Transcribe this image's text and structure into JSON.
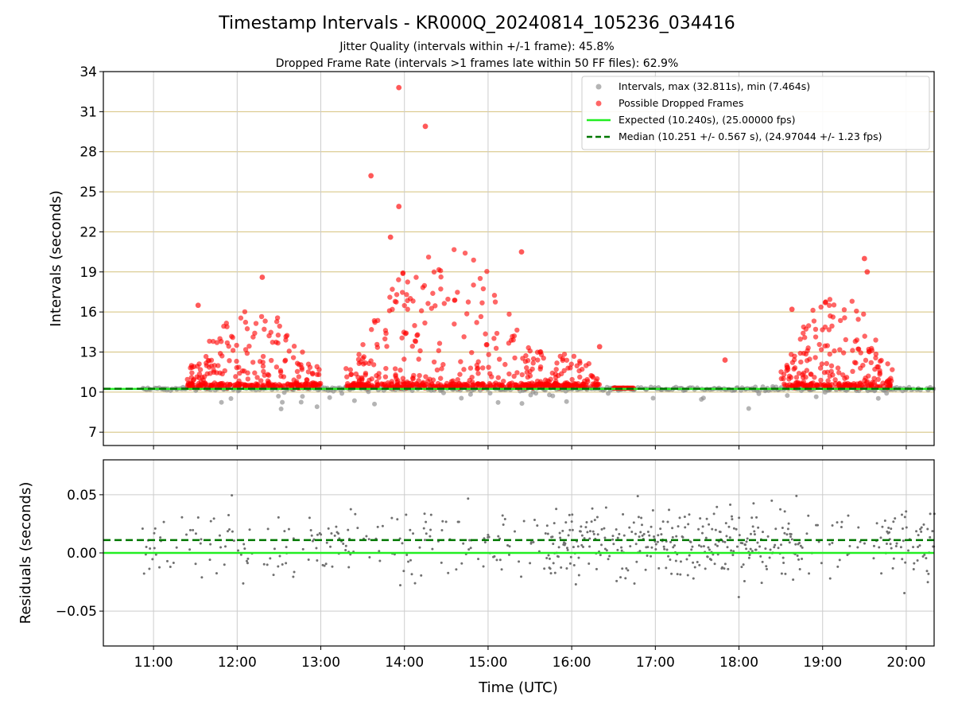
{
  "title": "Timestamp Intervals - KR000Q_20240814_105236_034416",
  "subtitle1": "Jitter Quality (intervals within +/-1 frame): 45.8%",
  "subtitle2": "Dropped Frame Rate (intervals >1 frames late within 50 FF files): 62.9%",
  "colors": {
    "intervals": "#8c8c8c",
    "dropped": "#ff0000",
    "expected": "#22ee22",
    "median": "#007700",
    "grid_top": "#d4c07a",
    "grid": "#cccccc",
    "residuals": "#707070"
  },
  "chart_data": [
    {
      "type": "scatter",
      "name": "intervals",
      "ylabel": "Intervals (seconds)",
      "ylim": [
        6,
        34
      ],
      "xlim": [
        "10:24",
        "20:20"
      ],
      "yticks": [
        7,
        10,
        13,
        16,
        19,
        22,
        25,
        28,
        31,
        34
      ],
      "grid": "horizontal (gold) and vertical",
      "legend_position": "top-right",
      "legend": [
        {
          "label": "Intervals, max (32.811s), min (7.464s)",
          "kind": "dot-gray"
        },
        {
          "label": "Possible Dropped Frames",
          "kind": "dot-red"
        },
        {
          "label": "Expected (10.240s), (25.00000 fps)",
          "kind": "line-green"
        },
        {
          "label": "Median (10.251 +/- 0.567 s), (24.97044 +/- 1.23 fps)",
          "kind": "dashed-green"
        }
      ],
      "expected": 10.24,
      "median": 10.251,
      "max": 32.811,
      "min": 7.464,
      "dropped_highlights": [
        {
          "x": "13:56",
          "y": 32.8
        },
        {
          "x": "14:15",
          "y": 29.9
        },
        {
          "x": "13:36",
          "y": 26.2
        },
        {
          "x": "13:56",
          "y": 23.9
        },
        {
          "x": "13:50",
          "y": 21.6
        },
        {
          "x": "15:24",
          "y": 20.5
        },
        {
          "x": "19:30",
          "y": 20.0
        },
        {
          "x": "12:18",
          "y": 18.6
        },
        {
          "x": "19:32",
          "y": 19.0
        },
        {
          "x": "11:32",
          "y": 16.5
        },
        {
          "x": "18:38",
          "y": 16.2
        },
        {
          "x": "19:02",
          "y": 16.7
        },
        {
          "x": "16:20",
          "y": 13.4
        },
        {
          "x": "17:50",
          "y": 12.4
        }
      ],
      "clusters": [
        {
          "from": "11:24",
          "to": "13:00",
          "spread": [
            10.5,
            16.5
          ]
        },
        {
          "from": "13:18",
          "to": "15:40",
          "spread": [
            10.5,
            21
          ]
        },
        {
          "from": "15:40",
          "to": "16:20",
          "spread": [
            10.5,
            13.2
          ]
        },
        {
          "from": "18:30",
          "to": "19:50",
          "spread": [
            10.5,
            17.5
          ]
        }
      ]
    },
    {
      "type": "scatter",
      "name": "residuals",
      "xlabel": "Time (UTC)",
      "ylabel": "Residuals (seconds)",
      "ylim": [
        -0.08,
        0.08
      ],
      "yticks": [
        "−0.05",
        "0.00",
        "0.05"
      ],
      "ytick_values": [
        -0.05,
        0.0,
        0.05
      ],
      "xticks": [
        "11:00",
        "12:00",
        "13:00",
        "14:00",
        "15:00",
        "16:00",
        "17:00",
        "18:00",
        "19:00",
        "20:00"
      ],
      "expected_residual": 0.0,
      "median_residual": 0.011
    }
  ]
}
